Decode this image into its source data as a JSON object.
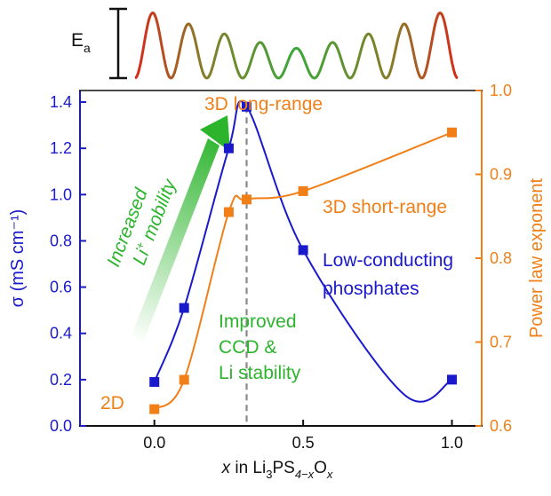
{
  "chart_data": {
    "type": "line",
    "x": [
      0.0,
      0.1,
      0.25,
      0.31,
      0.5,
      1.0
    ],
    "series": [
      {
        "axis": "left",
        "color": "#1a1acc",
        "values": [
          0.19,
          0.51,
          1.2,
          1.38,
          0.76,
          0.2
        ]
      },
      {
        "axis": "right",
        "color": "#f07f18",
        "values": [
          0.62,
          0.655,
          0.855,
          0.87,
          0.88,
          0.95
        ]
      }
    ],
    "ylabel_left": "σ (mS cm⁻¹)",
    "ylabel_right": "Power law exponent",
    "xlabel": {
      "italic_x": "x",
      "in": " in Li",
      "sub1": "3",
      "ps": "PS",
      "sub2": "4−x",
      "o": "O",
      "sub3": "x"
    },
    "xlim": [
      -0.25,
      1.1
    ],
    "ylim_left": [
      0.0,
      1.45
    ],
    "ylim_right": [
      0.6,
      1.0
    ],
    "xticks": [
      "0.0",
      "0.5",
      "1.0"
    ],
    "yticks_left": [
      "0.0",
      "0.2",
      "0.4",
      "0.6",
      "0.8",
      "1.0",
      "1.2",
      "1.4"
    ],
    "yticks_right": [
      "0.6",
      "0.7",
      "0.8",
      "0.9",
      "1.0"
    ],
    "dashed_line_x": 0.31,
    "annotations": {
      "long_range": "3D long-range",
      "short_range": "3D short-range",
      "two_d": "2D",
      "low_conducting_1": "Low-conducting",
      "low_conducting_2": "phosphates",
      "improved_1": "Improved",
      "improved_2": "CCD &",
      "improved_3": "Li stability",
      "increased": "Increased",
      "mobility_li": "Li",
      "mobility_sup": "+",
      "mobility_rest": " mobility",
      "ea_main": "E",
      "ea_sub": "a"
    },
    "colors": {
      "left_axis": "#1a1acc",
      "right_axis": "#f07f18",
      "green": "#2cb42c",
      "dashed": "#888888",
      "ea_red": "#d82a1a",
      "ea_green": "#3aa83a"
    }
  }
}
